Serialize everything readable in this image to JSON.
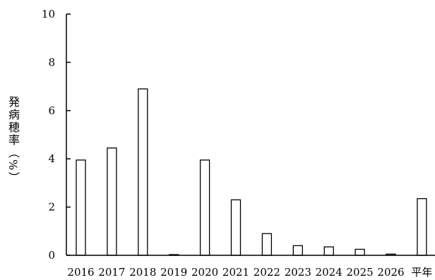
{
  "chart_data": {
    "type": "bar",
    "title": "",
    "xlabel": "",
    "ylabel": "発病穂率（%）",
    "categories": [
      "2016",
      "2017",
      "2018",
      "2019",
      "2020",
      "2021",
      "2022",
      "2023",
      "2024",
      "2025",
      "2026",
      "平年"
    ],
    "values": [
      3.95,
      4.45,
      6.9,
      0.03,
      3.95,
      2.3,
      0.9,
      0.4,
      0.35,
      0.25,
      0.05,
      2.35
    ],
    "ylim": [
      0,
      10
    ],
    "yticks": [
      0,
      2,
      4,
      6,
      8,
      10
    ],
    "grid": false,
    "legend": "none",
    "colors": {
      "bar_fill": "#ffffff",
      "bar_stroke": "#000000",
      "axis": "#000000"
    }
  }
}
